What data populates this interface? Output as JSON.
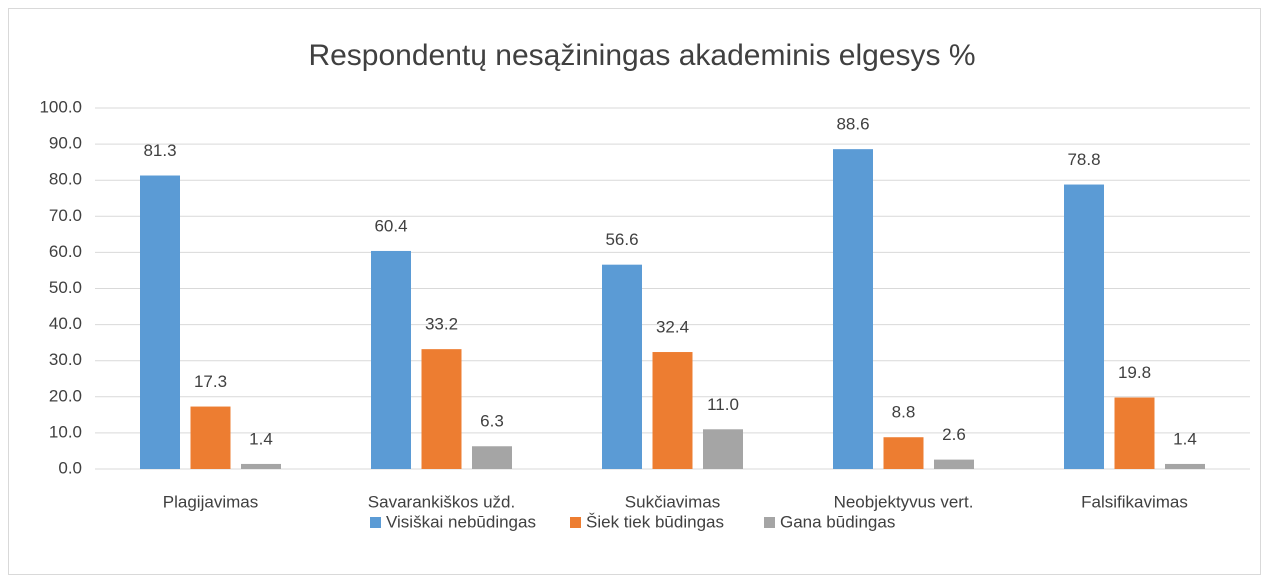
{
  "chart_data": {
    "type": "bar",
    "title": "Respondentų nesąžiningas akademinis elgesys %",
    "categories": [
      "Plagijavimas",
      "Savarankiškos užd.",
      "Sukčiavimas",
      "Neobjektyvus vert.",
      "Falsifikavimas"
    ],
    "series": [
      {
        "name": "Visiškai nebūdingas",
        "color": "#5b9bd5",
        "values": [
          81.3,
          60.4,
          56.6,
          88.6,
          78.8
        ],
        "value_labels": [
          "81.3",
          "60.4",
          "56.6",
          "88.6",
          "78.8"
        ]
      },
      {
        "name": "Šiek tiek būdingas",
        "color": "#ed7d31",
        "values": [
          17.3,
          33.2,
          32.4,
          8.8,
          19.8
        ],
        "value_labels": [
          "17.3",
          "33.2",
          "32.4",
          "8.8",
          "19.8"
        ]
      },
      {
        "name": "Gana būdingas",
        "color": "#a5a5a5",
        "values": [
          1.4,
          6.3,
          11.0,
          2.6,
          1.4
        ],
        "value_labels": [
          "1.4",
          "6.3",
          "11.0",
          "2.6",
          "1.4"
        ]
      }
    ],
    "ylim": [
      0,
      100
    ],
    "yticks": [
      {
        "value": 0,
        "label": "0.0"
      },
      {
        "value": 10,
        "label": "10.0"
      },
      {
        "value": 20,
        "label": "20.0"
      },
      {
        "value": 30,
        "label": "30.0"
      },
      {
        "value": 40,
        "label": "40.0"
      },
      {
        "value": 50,
        "label": "50.0"
      },
      {
        "value": 60,
        "label": "60.0"
      },
      {
        "value": 70,
        "label": "70.0"
      },
      {
        "value": 80,
        "label": "80.0"
      },
      {
        "value": 90,
        "label": "90.0"
      },
      {
        "value": 100,
        "label": "100.0"
      }
    ],
    "grid": true,
    "legend": "bottom"
  }
}
